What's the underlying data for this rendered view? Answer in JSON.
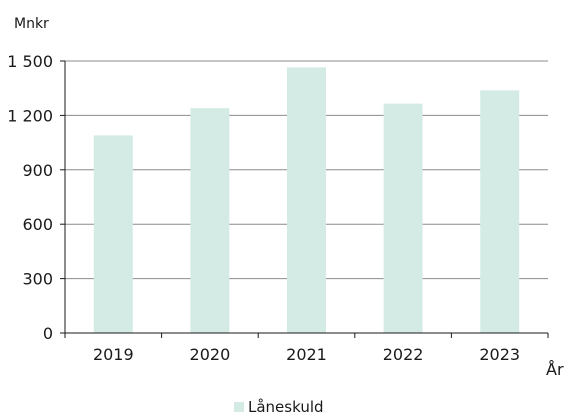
{
  "chart_data": {
    "type": "bar",
    "categories": [
      "2019",
      "2020",
      "2021",
      "2022",
      "2023"
    ],
    "series": [
      {
        "name": "Låneskuld",
        "values": [
          1090,
          1240,
          1465,
          1265,
          1338
        ]
      }
    ],
    "ylabel": "Mnkr",
    "xlabel": "År",
    "ylim": [
      0,
      1500
    ],
    "yticks": [
      0,
      300,
      600,
      900,
      1200,
      1500
    ],
    "ytick_labels": [
      "0",
      "300",
      "600",
      "900",
      "1 200",
      "1 500"
    ],
    "grid": true,
    "legend_position": "bottom-center",
    "colors": {
      "bar": "#d4ebe5",
      "grid": "#8c8c8c",
      "axis": "#1a1a1a"
    }
  }
}
